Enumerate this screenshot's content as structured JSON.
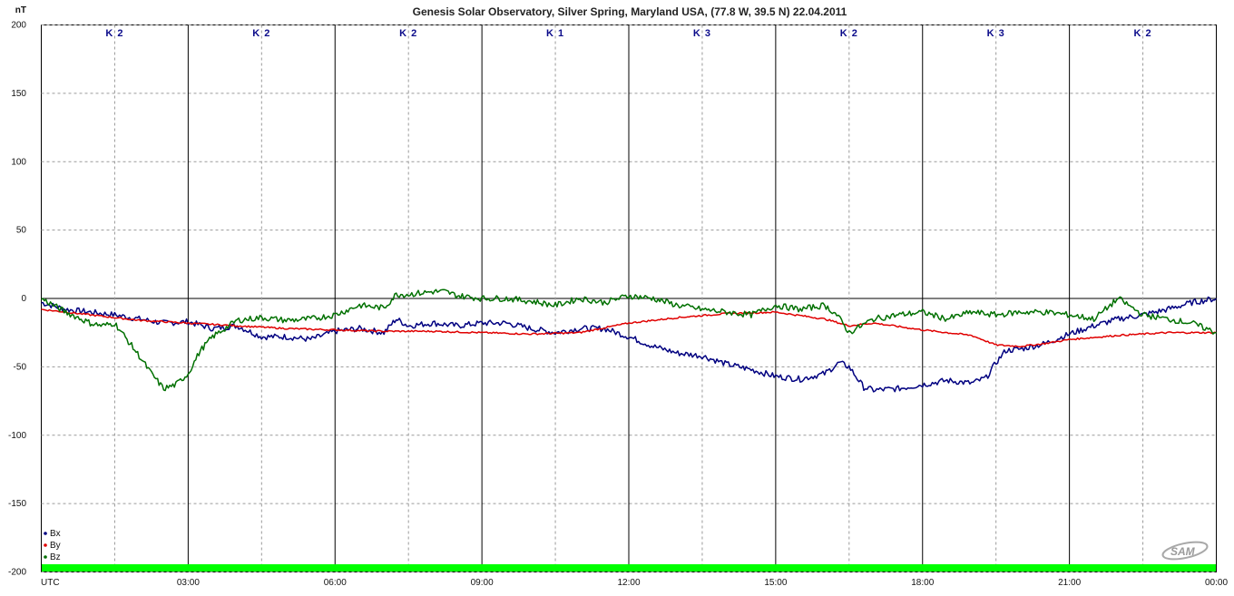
{
  "chart_data": {
    "type": "line",
    "title": "Genesis Solar Observatory, Silver Spring, Maryland USA, (77.8 W, 39.5 N)  22.04.2011",
    "ylabel": "nT",
    "xlabel": "UTC",
    "ylim": [
      -200,
      200
    ],
    "xlim": [
      0,
      24
    ],
    "y_ticks": [
      200,
      150,
      100,
      50,
      0,
      -50,
      -100,
      -150,
      -200
    ],
    "x_ticks": [
      {
        "x": 3,
        "label": "03:00"
      },
      {
        "x": 6,
        "label": "06:00"
      },
      {
        "x": 9,
        "label": "09:00"
      },
      {
        "x": 12,
        "label": "12:00"
      },
      {
        "x": 15,
        "label": "15:00"
      },
      {
        "x": 18,
        "label": "18:00"
      },
      {
        "x": 21,
        "label": "21:00"
      },
      {
        "x": 24,
        "label": "00:00"
      }
    ],
    "k_index": [
      {
        "center": 1.5,
        "label": "K 2"
      },
      {
        "center": 4.5,
        "label": "K 2"
      },
      {
        "center": 7.5,
        "label": "K 2"
      },
      {
        "center": 10.5,
        "label": "K 1"
      },
      {
        "center": 13.5,
        "label": "K 3"
      },
      {
        "center": 16.5,
        "label": "K 2"
      },
      {
        "center": 19.5,
        "label": "K 3"
      },
      {
        "center": 22.5,
        "label": "K 2"
      }
    ],
    "grid": true,
    "legend_position": "bottom-left",
    "series": [
      {
        "name": "Bx",
        "color": "#000080",
        "x": [
          0,
          0.5,
          1,
          1.5,
          2,
          2.5,
          3,
          3.5,
          4,
          4.5,
          5,
          5.5,
          6,
          6.5,
          7,
          7.25,
          7.5,
          8,
          8.5,
          9,
          9.5,
          10,
          10.5,
          11,
          11.5,
          12,
          12.5,
          13,
          13.5,
          14,
          14.5,
          15,
          15.5,
          16,
          16.3,
          16.5,
          16.8,
          17,
          17.5,
          18,
          18.5,
          19,
          19.3,
          19.5,
          19.7,
          20,
          20.5,
          21,
          21.5,
          22,
          22.5,
          23,
          23.5,
          24
        ],
        "values": [
          -3,
          -8,
          -10,
          -12,
          -15,
          -18,
          -17,
          -22,
          -20,
          -28,
          -28,
          -30,
          -24,
          -22,
          -25,
          -15,
          -20,
          -18,
          -20,
          -18,
          -18,
          -22,
          -25,
          -22,
          -22,
          -28,
          -35,
          -40,
          -42,
          -48,
          -52,
          -57,
          -59,
          -55,
          -47,
          -50,
          -65,
          -67,
          -66,
          -63,
          -60,
          -62,
          -58,
          -47,
          -38,
          -37,
          -33,
          -26,
          -20,
          -15,
          -12,
          -8,
          -3,
          0
        ]
      },
      {
        "name": "By",
        "color": "#e00000",
        "x": [
          0,
          0.5,
          1,
          1.5,
          2,
          2.5,
          3,
          4,
          5,
          6,
          7,
          8,
          9,
          10,
          11,
          12,
          13,
          14,
          15,
          16,
          16.5,
          17,
          18,
          19,
          19.5,
          20,
          20.5,
          21,
          22,
          23,
          24
        ],
        "values": [
          -8,
          -10,
          -12,
          -14,
          -16,
          -17,
          -18,
          -20,
          -22,
          -23,
          -24,
          -24,
          -25,
          -26,
          -25,
          -18,
          -14,
          -11,
          -10,
          -15,
          -20,
          -18,
          -23,
          -27,
          -34,
          -35,
          -33,
          -30,
          -27,
          -25,
          -25
        ]
      },
      {
        "name": "Bz",
        "color": "#007000",
        "x": [
          0,
          0.25,
          0.5,
          0.75,
          1,
          1.25,
          1.5,
          1.75,
          2,
          2.25,
          2.5,
          2.75,
          3,
          3.25,
          3.5,
          3.75,
          4,
          4.5,
          5,
          5.5,
          6,
          6.5,
          7,
          7.25,
          7.5,
          8,
          8.25,
          8.5,
          9,
          9.5,
          10,
          10.5,
          11,
          11.5,
          12,
          12.5,
          13,
          13.5,
          14,
          14.5,
          15,
          15.5,
          16,
          16.25,
          16.5,
          16.75,
          17,
          17.5,
          18,
          18.5,
          19,
          19.5,
          20,
          20.5,
          21,
          21.5,
          22,
          22.5,
          23,
          23.5,
          24
        ],
        "values": [
          0,
          -5,
          -10,
          -14,
          -18,
          -20,
          -18,
          -30,
          -42,
          -55,
          -66,
          -63,
          -55,
          -38,
          -28,
          -22,
          -16,
          -14,
          -16,
          -15,
          -12,
          -5,
          -7,
          3,
          3,
          5,
          5,
          2,
          0,
          0,
          -2,
          -5,
          0,
          -3,
          2,
          0,
          -5,
          -8,
          -10,
          -12,
          -5,
          -8,
          -5,
          -12,
          -25,
          -20,
          -15,
          -12,
          -10,
          -15,
          -10,
          -12,
          -10,
          -10,
          -12,
          -15,
          0,
          -12,
          -15,
          -18,
          -25
        ]
      }
    ]
  },
  "watermark": "SAM"
}
